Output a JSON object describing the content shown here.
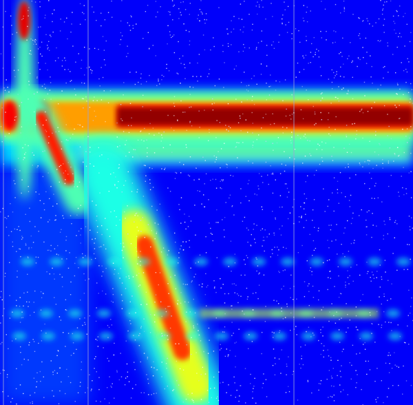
{
  "chart_data": {
    "type": "heatmap",
    "colormap": "jet",
    "colors": [
      "#00007f",
      "#0000ff",
      "#0080ff",
      "#00ffff",
      "#80ff80",
      "#ffff00",
      "#ff8000",
      "#ff0000",
      "#7f0000"
    ],
    "background_level": 0.12,
    "noise": "speckle",
    "features": [
      {
        "kind": "horizontal_band",
        "name": "dominant-band",
        "level": 0.98
      },
      {
        "kind": "secondary_band",
        "name": "side-band",
        "level": 0.5
      },
      {
        "kind": "diagonal_ridge",
        "name": "upper-ridge",
        "level": 0.85
      },
      {
        "kind": "diagonal_ridge",
        "name": "lower-ridge",
        "level": 0.82
      },
      {
        "kind": "vertical_spike",
        "name": "left-spike",
        "level": 0.9
      },
      {
        "kind": "dotted_line",
        "name": "faint-dot-rows",
        "level": 0.4
      }
    ],
    "grid": true,
    "legend": "none"
  }
}
